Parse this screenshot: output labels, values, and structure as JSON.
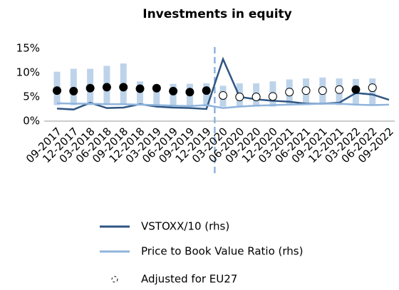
{
  "chart_data": {
    "type": "bar",
    "title": "Investments in equity",
    "categories": [
      "09-2017",
      "12-2017",
      "03-2018",
      "06-2018",
      "09-2018",
      "12-2018",
      "03-2019",
      "06-2019",
      "09-2019",
      "12-2019",
      "03-2020",
      "06-2020",
      "09-2020",
      "12-2020",
      "03-2021",
      "06-2021",
      "09-2021",
      "12-2021",
      "03-2022",
      "06-2022",
      "09-2022"
    ],
    "ranges": {
      "color": "#bdd3ea",
      "low": [
        3.3,
        3.3,
        3.3,
        3.5,
        3.5,
        3.3,
        3.3,
        3.0,
        3.0,
        3.0,
        3.0,
        3.0,
        3.0,
        3.0,
        3.3,
        3.3,
        3.5,
        3.3,
        3.3,
        3.3,
        null
      ],
      "high": [
        10.2,
        10.8,
        10.8,
        11.4,
        11.9,
        8.2,
        7.5,
        7.7,
        7.7,
        7.8,
        7.3,
        7.8,
        7.8,
        8.2,
        8.6,
        8.8,
        9.0,
        8.8,
        8.7,
        8.8,
        null
      ]
    },
    "series": [
      {
        "name": "VSTOXX/10 (rhs)",
        "color": "#2f5683",
        "kind": "line",
        "values": [
          2.6,
          2.4,
          3.8,
          2.7,
          2.8,
          3.5,
          3.0,
          2.8,
          2.7,
          2.5,
          12.8,
          5.0,
          4.5,
          4.2,
          4.0,
          3.6,
          3.6,
          3.8,
          5.8,
          5.5,
          4.4
        ]
      },
      {
        "name": "Price to Book Value Ratio (rhs)",
        "color": "#8fb4dc",
        "kind": "line",
        "values": [
          3.7,
          3.6,
          3.6,
          3.5,
          3.5,
          3.4,
          3.3,
          3.2,
          3.1,
          3.3,
          2.7,
          3.0,
          3.2,
          3.3,
          3.4,
          3.5,
          3.6,
          3.6,
          3.4,
          3.3,
          3.4
        ]
      },
      {
        "name": "Adjusted for EU27",
        "color": "#000000",
        "kind": "dots",
        "marker_fill": [
          "#000000",
          "#000000",
          "#000000",
          "#000000",
          "#000000",
          "#000000",
          "#000000",
          "#000000",
          "#000000",
          "#000000",
          "#ffffff",
          "#ffffff",
          "#ffffff",
          "#ffffff",
          "#ffffff",
          "#ffffff",
          "#ffffff",
          "#ffffff",
          "#000000",
          "#ffffff",
          "#ffffff"
        ],
        "values": [
          6.3,
          6.2,
          6.8,
          7.0,
          7.0,
          6.7,
          6.8,
          6.2,
          6.0,
          6.3,
          5.3,
          5.0,
          5.0,
          5.1,
          6.0,
          6.3,
          6.3,
          6.5,
          6.5,
          6.9,
          null
        ]
      }
    ],
    "ylim": [
      0,
      15
    ],
    "yticks": [
      {
        "value": 0,
        "label": "0%"
      },
      {
        "value": 5,
        "label": "5%"
      },
      {
        "value": 10,
        "label": "10%"
      },
      {
        "value": 15,
        "label": "15%"
      }
    ],
    "grid": false
  }
}
